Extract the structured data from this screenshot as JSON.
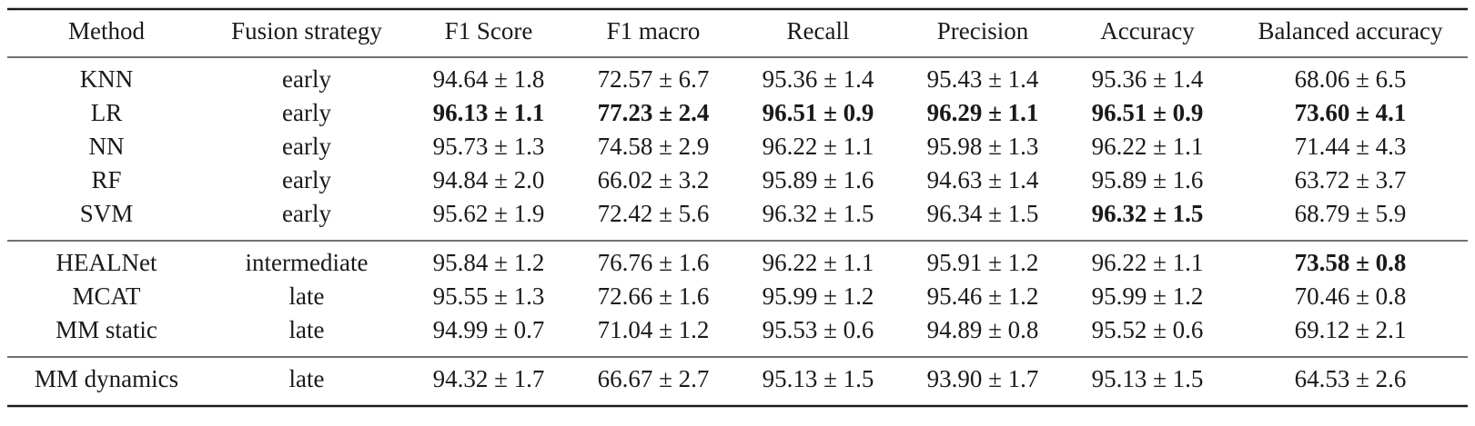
{
  "table": {
    "columns": [
      "Method",
      "Fusion strategy",
      "F1 Score",
      "F1 macro",
      "Recall",
      "Precision",
      "Accuracy",
      "Balanced accuracy"
    ],
    "groups": [
      [
        {
          "cells": [
            "KNN",
            "early",
            "94.64 ± 1.8",
            "72.57 ± 6.7",
            "95.36 ± 1.4",
            "95.43 ± 1.4",
            "95.36 ± 1.4",
            "68.06 ± 6.5"
          ],
          "bold": []
        },
        {
          "cells": [
            "LR",
            "early",
            "96.13 ± 1.1",
            "77.23 ± 2.4",
            "96.51 ± 0.9",
            "96.29 ± 1.1",
            "96.51 ± 0.9",
            "73.60 ± 4.1"
          ],
          "bold": [
            2,
            3,
            4,
            5,
            6,
            7
          ]
        },
        {
          "cells": [
            "NN",
            "early",
            "95.73 ± 1.3",
            "74.58 ± 2.9",
            "96.22 ± 1.1",
            "95.98 ± 1.3",
            "96.22 ± 1.1",
            "71.44 ± 4.3"
          ],
          "bold": []
        },
        {
          "cells": [
            "RF",
            "early",
            "94.84 ± 2.0",
            "66.02 ± 3.2",
            "95.89 ± 1.6",
            "94.63 ± 1.4",
            "95.89 ± 1.6",
            "63.72 ± 3.7"
          ],
          "bold": []
        },
        {
          "cells": [
            "SVM",
            "early",
            "95.62 ± 1.9",
            "72.42 ± 5.6",
            "96.32 ± 1.5",
            "96.34 ± 1.5",
            "96.32 ± 1.5",
            "68.79 ± 5.9"
          ],
          "bold": [
            6
          ]
        }
      ],
      [
        {
          "cells": [
            "HEALNet",
            "intermediate",
            "95.84 ± 1.2",
            "76.76 ± 1.6",
            "96.22 ± 1.1",
            "95.91 ± 1.2",
            "96.22 ± 1.1",
            "73.58 ± 0.8"
          ],
          "bold": [
            7
          ]
        },
        {
          "cells": [
            "MCAT",
            "late",
            "95.55 ± 1.3",
            "72.66 ± 1.6",
            "95.99 ± 1.2",
            "95.46 ± 1.2",
            "95.99 ± 1.2",
            "70.46 ± 0.8"
          ],
          "bold": []
        },
        {
          "cells": [
            "MM static",
            "late",
            "94.99 ± 0.7",
            "71.04 ± 1.2",
            "95.53 ± 0.6",
            "94.89 ± 0.8",
            "95.52 ± 0.6",
            "69.12 ± 2.1"
          ],
          "bold": []
        }
      ],
      [
        {
          "cells": [
            "MM dynamics",
            "late",
            "94.32 ± 1.7",
            "66.67 ± 2.7",
            "95.13 ± 1.5",
            "93.90 ± 1.7",
            "95.13 ± 1.5",
            "64.53 ± 2.6"
          ],
          "bold": []
        }
      ]
    ]
  }
}
